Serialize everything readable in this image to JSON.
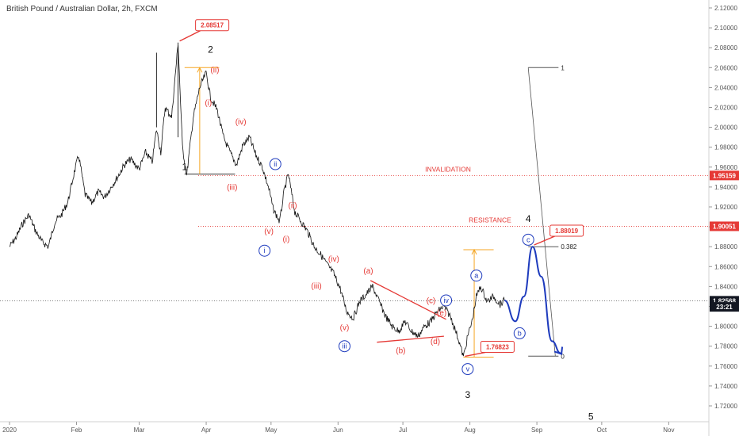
{
  "chart_title": "British Pound / Australian Dollar, 2h, FXCM",
  "chart_data": {
    "type": "line",
    "title": "British Pound / Australian Dollar, 2h, FXCM",
    "xlabel": "",
    "ylabel": "",
    "x_tick_labels": [
      "2020",
      "Feb",
      "Mar",
      "Apr",
      "May",
      "Jun",
      "Jul",
      "Aug",
      "Sep",
      "Oct",
      "Nov"
    ],
    "y_ticks": [
      1.72,
      1.74,
      1.76,
      1.78,
      1.8,
      1.82,
      1.84,
      1.86,
      1.88,
      1.9,
      1.92,
      1.94,
      1.96,
      1.98,
      2.0,
      2.02,
      2.04,
      2.06,
      2.08,
      2.1,
      2.12
    ],
    "y_tick_labels": [
      "1.72000",
      "1.74000",
      "1.76000",
      "1.78000",
      "1.80000",
      "1.82000",
      "1.84000",
      "1.86000",
      "1.88000",
      "1.90000",
      "1.92000",
      "1.94000",
      "1.96000",
      "1.98000",
      "2.00000",
      "2.02000",
      "2.04000",
      "2.06000",
      "2.08000",
      "2.10000",
      "2.12000"
    ],
    "ylim": [
      1.7,
      2.13
    ],
    "grid": false,
    "series": [
      {
        "values": [
          [
            "2020-01-01",
            1.88
          ],
          [
            "2020-01-04",
            1.889
          ],
          [
            "2020-01-07",
            1.903
          ],
          [
            "2020-01-10",
            1.912
          ],
          [
            "2020-01-13",
            1.896
          ],
          [
            "2020-01-16",
            1.885
          ],
          [
            "2020-01-19",
            1.88
          ],
          [
            "2020-01-22",
            1.905
          ],
          [
            "2020-01-25",
            1.912
          ],
          [
            "2020-01-28",
            1.925
          ],
          [
            "2020-01-31",
            1.955
          ],
          [
            "2020-02-02",
            1.972
          ],
          [
            "2020-02-05",
            1.932
          ],
          [
            "2020-02-08",
            1.924
          ],
          [
            "2020-02-11",
            1.935
          ],
          [
            "2020-02-14",
            1.93
          ],
          [
            "2020-02-17",
            1.94
          ],
          [
            "2020-02-20",
            1.95
          ],
          [
            "2020-02-23",
            1.962
          ],
          [
            "2020-02-26",
            1.968
          ],
          [
            "2020-03-01",
            1.958
          ],
          [
            "2020-03-04",
            1.975
          ],
          [
            "2020-03-07",
            1.965
          ],
          [
            "2020-03-09",
            1.998
          ],
          [
            "2020-03-11",
            1.975
          ],
          [
            "2020-03-13",
            2.02
          ],
          [
            "2020-03-16",
            2.01
          ],
          [
            "2020-03-19",
            2.085
          ],
          [
            "2020-03-21",
            1.98
          ],
          [
            "2020-03-23",
            1.952
          ],
          [
            "2020-03-26",
            2.01
          ],
          [
            "2020-03-29",
            2.04
          ],
          [
            "2020-04-01",
            2.055
          ],
          [
            "2020-04-03",
            2.03
          ],
          [
            "2020-04-06",
            2.018
          ],
          [
            "2020-04-09",
            1.99
          ],
          [
            "2020-04-12",
            1.975
          ],
          [
            "2020-04-15",
            1.962
          ],
          [
            "2020-04-18",
            1.982
          ],
          [
            "2020-04-21",
            1.99
          ],
          [
            "2020-04-24",
            1.972
          ],
          [
            "2020-04-27",
            1.96
          ],
          [
            "2020-04-30",
            1.938
          ],
          [
            "2020-05-02",
            1.918
          ],
          [
            "2020-05-05",
            1.905
          ],
          [
            "2020-05-07",
            1.935
          ],
          [
            "2020-05-09",
            1.953
          ],
          [
            "2020-05-12",
            1.915
          ],
          [
            "2020-05-15",
            1.905
          ],
          [
            "2020-05-18",
            1.895
          ],
          [
            "2020-05-21",
            1.88
          ],
          [
            "2020-05-24",
            1.872
          ],
          [
            "2020-05-27",
            1.862
          ],
          [
            "2020-05-30",
            1.853
          ],
          [
            "2020-06-02",
            1.838
          ],
          [
            "2020-06-05",
            1.815
          ],
          [
            "2020-06-08",
            1.808
          ],
          [
            "2020-06-11",
            1.825
          ],
          [
            "2020-06-14",
            1.832
          ],
          [
            "2020-06-17",
            1.84
          ],
          [
            "2020-06-20",
            1.825
          ],
          [
            "2020-06-23",
            1.81
          ],
          [
            "2020-06-26",
            1.8
          ],
          [
            "2020-06-29",
            1.795
          ],
          [
            "2020-07-02",
            1.805
          ],
          [
            "2020-07-05",
            1.795
          ],
          [
            "2020-07-08",
            1.79
          ],
          [
            "2020-07-11",
            1.8
          ],
          [
            "2020-07-14",
            1.805
          ],
          [
            "2020-07-17",
            1.815
          ],
          [
            "2020-07-20",
            1.82
          ],
          [
            "2020-07-23",
            1.81
          ],
          [
            "2020-07-25",
            1.798
          ],
          [
            "2020-07-27",
            1.785
          ],
          [
            "2020-07-29",
            1.769
          ],
          [
            "2020-07-31",
            1.79
          ],
          [
            "2020-08-02",
            1.805
          ],
          [
            "2020-08-04",
            1.83
          ],
          [
            "2020-08-06",
            1.84
          ],
          [
            "2020-08-09",
            1.825
          ],
          [
            "2020-08-12",
            1.83
          ],
          [
            "2020-08-15",
            1.822
          ],
          [
            "2020-08-17",
            1.826
          ]
        ]
      }
    ],
    "forecast_path": [
      [
        "2020-08-17",
        1.826
      ],
      [
        "2020-08-22",
        1.805
      ],
      [
        "2020-08-26",
        1.83
      ],
      [
        "2020-08-30",
        1.88
      ],
      [
        "2020-09-03",
        1.85
      ],
      [
        "2020-09-08",
        1.785
      ],
      [
        "2020-09-12",
        1.773
      ]
    ],
    "price_badges": [
      {
        "label": "1.95159",
        "value": 1.95159
      },
      {
        "label": "1.90051",
        "value": 1.90051
      },
      {
        "label": "1.82568",
        "value": 1.82568
      },
      {
        "label": "23:21",
        "value": 1.8195
      }
    ],
    "horizontal_lines": [
      {
        "name": "INVALIDATION",
        "value": 1.95159
      },
      {
        "name": "RESISTANCE",
        "value": 1.90051
      },
      {
        "name": "current",
        "value": 1.82568
      }
    ],
    "callouts": [
      {
        "label": "2.08517",
        "x": "2020-03-19",
        "y": 2.08517
      },
      {
        "label": "1.88019",
        "x": "2020-08-30",
        "y": 1.88019
      },
      {
        "label": "1.76823",
        "x": "2020-07-29",
        "y": 1.76823
      }
    ],
    "fibonacci": {
      "labels": [
        {
          "text": "1",
          "y": 2.06
        },
        {
          "text": "0.382",
          "y": 1.88
        },
        {
          "text": "0",
          "y": 1.77
        }
      ]
    },
    "wave_labels_black": [
      {
        "text": "2",
        "x": "2020-04-03",
        "y": 2.075
      },
      {
        "text": "1",
        "x": "2020-03-22",
        "y": 1.957
      },
      {
        "text": "4",
        "x": "2020-08-28",
        "y": 1.905
      },
      {
        "text": "3",
        "x": "2020-07-31",
        "y": 1.728
      },
      {
        "text": "5",
        "x": "2020-09-26",
        "y": 1.706
      }
    ],
    "wave_labels_red": [
      {
        "text": "(ii)",
        "x": "2020-04-05",
        "y": 2.055
      },
      {
        "text": "(i)",
        "x": "2020-04-02",
        "y": 2.022
      },
      {
        "text": "(iv)",
        "x": "2020-04-17",
        "y": 2.003
      },
      {
        "text": "(iii)",
        "x": "2020-04-13",
        "y": 1.937
      },
      {
        "text": "(v)",
        "x": "2020-04-30",
        "y": 1.893
      },
      {
        "text": "(ii)",
        "x": "2020-05-11",
        "y": 1.919
      },
      {
        "text": "(i)",
        "x": "2020-05-08",
        "y": 1.885
      },
      {
        "text": "(iv)",
        "x": "2020-05-30",
        "y": 1.865
      },
      {
        "text": "(iii)",
        "x": "2020-05-22",
        "y": 1.838
      },
      {
        "text": "(v)",
        "x": "2020-06-04",
        "y": 1.796
      },
      {
        "text": "(a)",
        "x": "2020-06-15",
        "y": 1.853
      },
      {
        "text": "(b)",
        "x": "2020-06-30",
        "y": 1.773
      },
      {
        "text": "(c)",
        "x": "2020-07-14",
        "y": 1.823
      },
      {
        "text": "(d)",
        "x": "2020-07-16",
        "y": 1.782
      },
      {
        "text": "(e)",
        "x": "2020-07-19",
        "y": 1.811
      }
    ],
    "wave_labels_blue_circled": [
      {
        "text": "ii",
        "x": "2020-05-03",
        "y": 1.963
      },
      {
        "text": "i",
        "x": "2020-04-28",
        "y": 1.876
      },
      {
        "text": "iii",
        "x": "2020-06-04",
        "y": 1.78
      },
      {
        "text": "iv",
        "x": "2020-07-21",
        "y": 1.826
      },
      {
        "text": "v",
        "x": "2020-07-31",
        "y": 1.757
      },
      {
        "text": "a",
        "x": "2020-08-04",
        "y": 1.851
      },
      {
        "text": "b",
        "x": "2020-08-24",
        "y": 1.793
      },
      {
        "text": "c",
        "x": "2020-08-28",
        "y": 1.887
      }
    ],
    "zone_labels": [
      {
        "text": "INVALIDATION",
        "value": 1.95159
      },
      {
        "text": "RESISTANCE",
        "value": 1.90051
      }
    ]
  }
}
